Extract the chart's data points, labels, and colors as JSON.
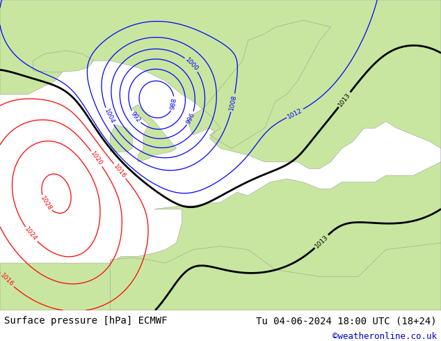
{
  "title_left": "Surface pressure [hPa] ECMWF",
  "title_right": "Tu 04-06-2024 18:00 UTC (18+24)",
  "credit": "©weatheronline.co.uk",
  "land_color": "#c8e6a0",
  "ocean_color": "#dce8f0",
  "footer_bg": "#c8c8c8",
  "footer_text_color": "#000000",
  "credit_color": "#0000cc",
  "title_fontsize": 10,
  "credit_fontsize": 9,
  "figsize": [
    6.34,
    4.9
  ],
  "dpi": 100
}
